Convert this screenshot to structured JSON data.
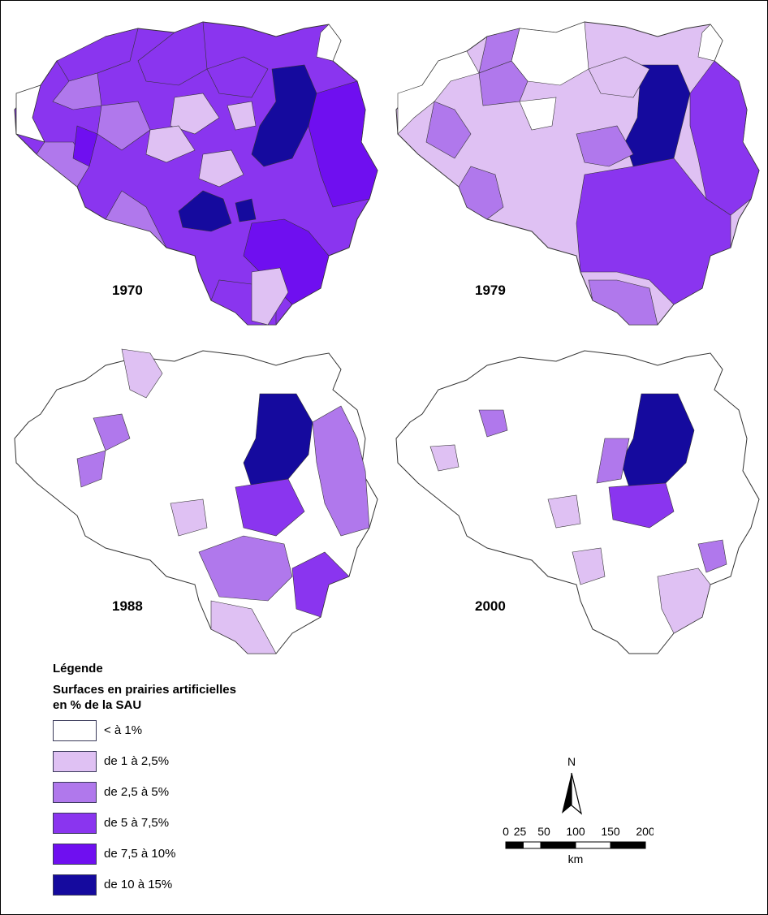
{
  "maps": [
    {
      "year": "1970"
    },
    {
      "year": "1979"
    },
    {
      "year": "1988"
    },
    {
      "year": "2000"
    }
  ],
  "legend": {
    "title": "Légende",
    "subtitle_line1": "Surfaces en prairies artificielles",
    "subtitle_line2": "en % de la SAU",
    "classes": [
      {
        "label": "< à 1%",
        "color": "#ffffff"
      },
      {
        "label": "de 1 à 2,5%",
        "color": "#dfc1f3"
      },
      {
        "label": "de 2,5 à 5%",
        "color": "#b078ec"
      },
      {
        "label": "de 5 à 7,5%",
        "color": "#8a35ef"
      },
      {
        "label": "de 7,5 à 10%",
        "color": "#6f0ff0"
      },
      {
        "label": "de 10 à 15%",
        "color": "#150a9e"
      }
    ]
  },
  "north_arrow": {
    "label": "N"
  },
  "scale": {
    "ticks": [
      "0",
      "25",
      "50",
      "100",
      "150",
      "200"
    ],
    "unit": "km"
  }
}
